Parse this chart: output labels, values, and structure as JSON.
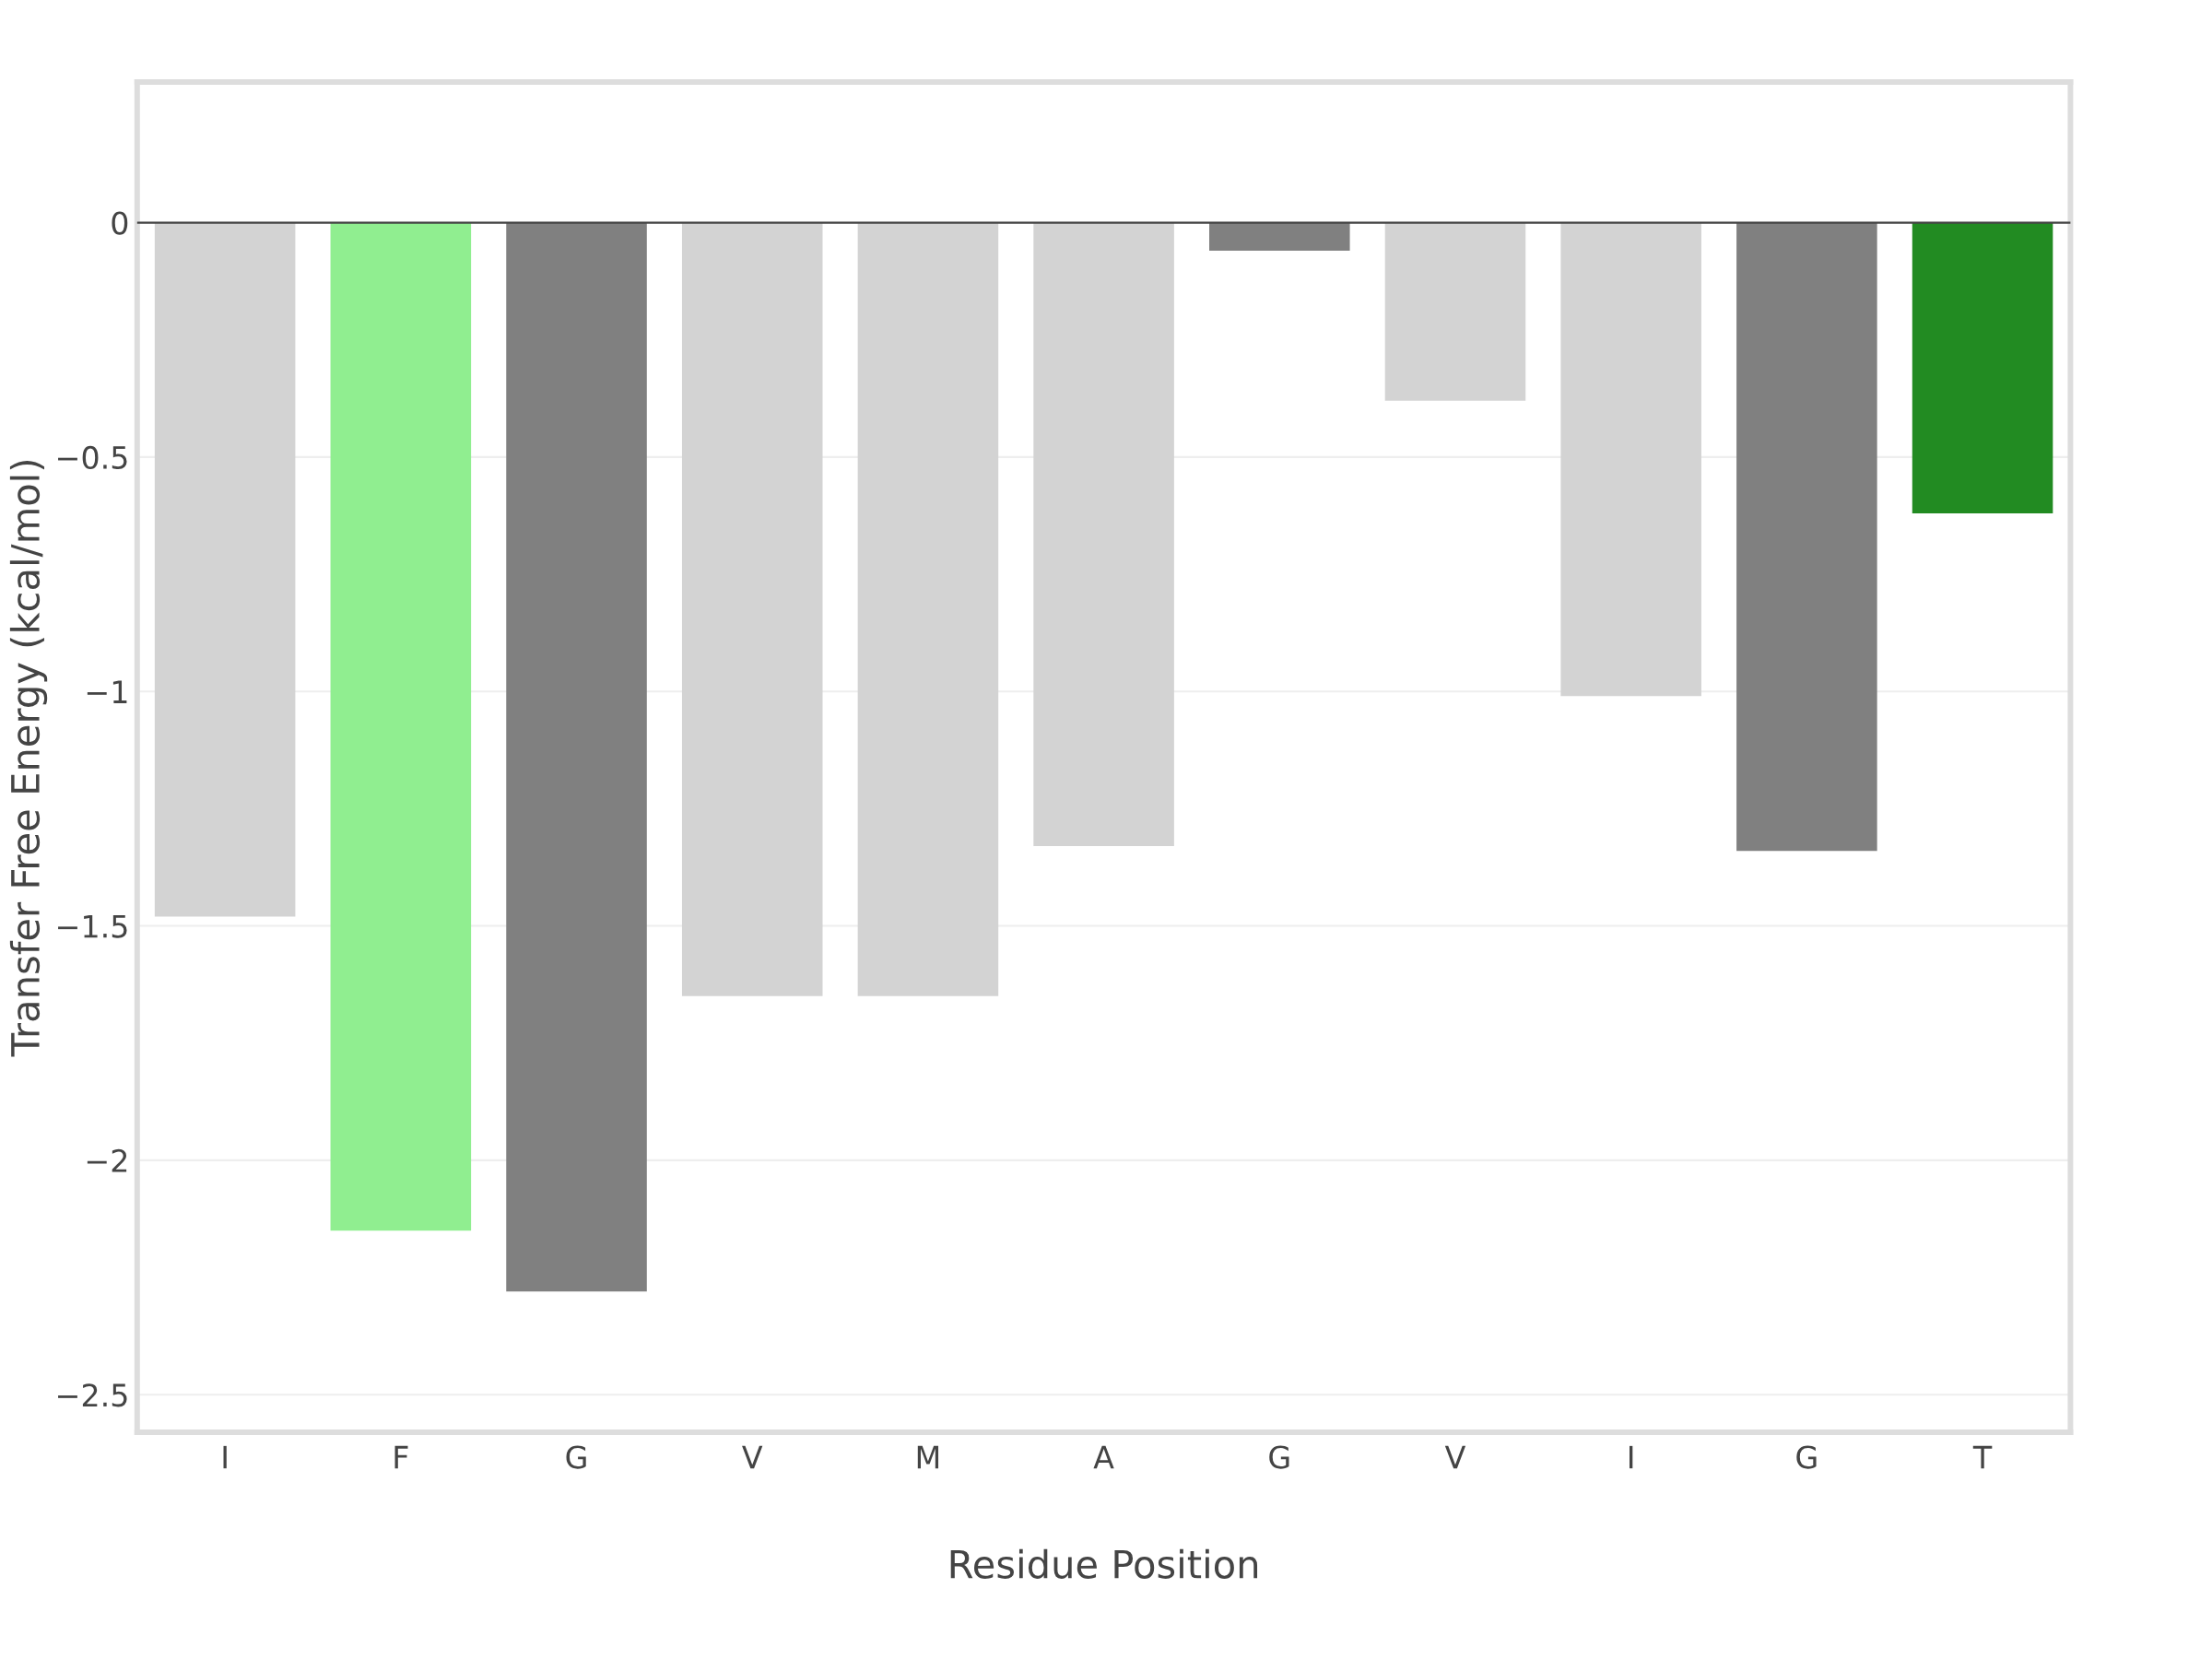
{
  "chart_data": {
    "type": "bar",
    "xlabel": "Residue Position",
    "ylabel": "Transfer Free Energy (kcal/mol)",
    "categories": [
      "I",
      "F",
      "G",
      "V",
      "M",
      "A",
      "G",
      "V",
      "I",
      "G",
      "T"
    ],
    "values": [
      -1.48,
      -2.15,
      -2.28,
      -1.65,
      -1.65,
      -1.33,
      -0.06,
      -0.38,
      -1.01,
      -1.34,
      -0.62
    ],
    "colors": [
      "#d3d3d3",
      "#90ee90",
      "#808080",
      "#d3d3d3",
      "#d3d3d3",
      "#d3d3d3",
      "#808080",
      "#d3d3d3",
      "#d3d3d3",
      "#808080",
      "#228b22"
    ],
    "ylim": [
      -2.58,
      0.3
    ],
    "yticks": [
      {
        "value": -2.5,
        "label": "−2.5"
      },
      {
        "value": -2,
        "label": "−2"
      },
      {
        "value": -1.5,
        "label": "−1.5"
      },
      {
        "value": -1,
        "label": "−1"
      },
      {
        "value": -0.5,
        "label": "−0.5"
      },
      0
    ],
    "grid": "y",
    "ref_lines": [
      {
        "axis": "y",
        "value": 0,
        "color": "#444444"
      }
    ]
  }
}
